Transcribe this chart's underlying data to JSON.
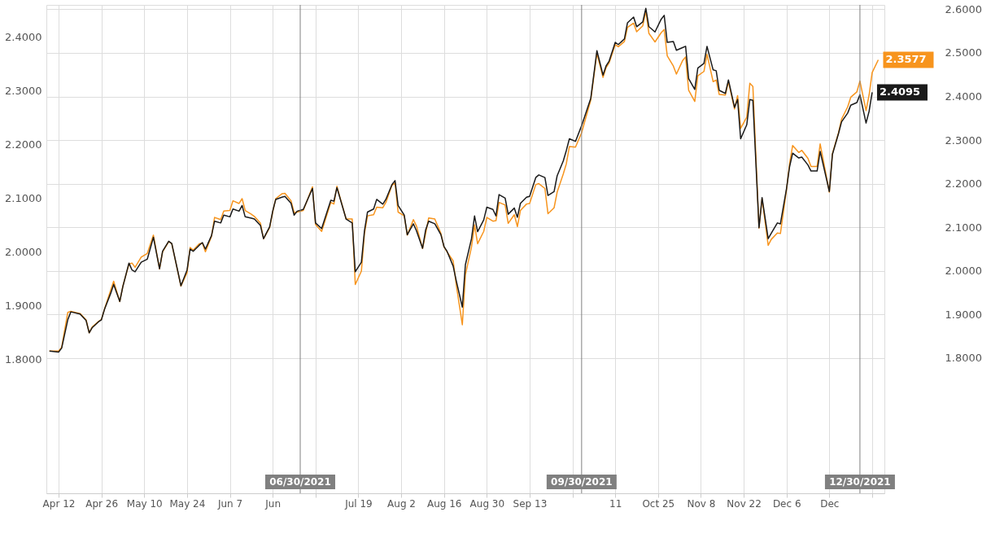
{
  "chart_data": {
    "type": "line",
    "x": [
      "2021-04-09",
      "2021-04-12",
      "2021-04-13",
      "2021-04-15",
      "2021-04-16",
      "2021-04-19",
      "2021-04-21",
      "2021-04-22",
      "2021-04-23",
      "2021-04-25",
      "2021-04-26",
      "2021-04-27",
      "2021-04-29",
      "2021-04-30",
      "2021-05-02",
      "2021-05-03",
      "2021-05-05",
      "2021-05-06",
      "2021-05-07",
      "2021-05-09",
      "2021-05-11",
      "2021-05-13",
      "2021-05-15",
      "2021-05-16",
      "2021-05-18",
      "2021-05-19",
      "2021-05-22",
      "2021-05-24",
      "2021-05-25",
      "2021-05-26",
      "2021-05-28",
      "2021-05-29",
      "2021-05-30",
      "2021-06-01",
      "2021-06-02",
      "2021-06-04",
      "2021-06-05",
      "2021-06-07",
      "2021-06-08",
      "2021-06-10",
      "2021-06-11",
      "2021-06-12",
      "2021-06-14",
      "2021-06-15",
      "2021-06-17",
      "2021-06-18",
      "2021-06-20",
      "2021-06-21",
      "2021-06-22",
      "2021-06-24",
      "2021-06-25",
      "2021-06-27",
      "2021-06-28",
      "2021-06-29",
      "2021-07-01",
      "2021-07-04",
      "2021-07-05",
      "2021-07-07",
      "2021-07-10",
      "2021-07-11",
      "2021-07-12",
      "2021-07-15",
      "2021-07-17",
      "2021-07-18",
      "2021-07-20",
      "2021-07-21",
      "2021-07-22",
      "2021-07-24",
      "2021-07-25",
      "2021-07-27",
      "2021-07-28",
      "2021-07-30",
      "2021-07-31",
      "2021-08-01",
      "2021-08-03",
      "2021-08-04",
      "2021-08-06",
      "2021-08-07",
      "2021-08-09",
      "2021-08-10",
      "2021-08-11",
      "2021-08-13",
      "2021-08-15",
      "2021-08-16",
      "2021-08-17",
      "2021-08-19",
      "2021-08-20",
      "2021-08-22",
      "2021-08-23",
      "2021-08-25",
      "2021-08-26",
      "2021-08-27",
      "2021-08-29",
      "2021-08-30",
      "2021-09-01",
      "2021-09-02",
      "2021-09-03",
      "2021-09-05",
      "2021-09-06",
      "2021-09-08",
      "2021-09-09",
      "2021-09-10",
      "2021-09-12",
      "2021-09-13",
      "2021-09-15",
      "2021-09-16",
      "2021-09-18",
      "2021-09-19",
      "2021-09-21",
      "2021-09-22",
      "2021-09-24",
      "2021-09-25",
      "2021-09-26",
      "2021-09-28",
      "2021-09-30",
      "2021-10-03",
      "2021-10-05",
      "2021-10-07",
      "2021-10-08",
      "2021-10-09",
      "2021-10-11",
      "2021-10-12",
      "2021-10-14",
      "2021-10-15",
      "2021-10-17",
      "2021-10-18",
      "2021-10-20",
      "2021-10-21",
      "2021-10-22",
      "2021-10-24",
      "2021-10-26",
      "2021-10-27",
      "2021-10-28",
      "2021-10-30",
      "2021-10-31",
      "2021-11-02",
      "2021-11-03",
      "2021-11-04",
      "2021-11-06",
      "2021-11-07",
      "2021-11-09",
      "2021-11-10",
      "2021-11-12",
      "2021-11-13",
      "2021-11-14",
      "2021-11-16",
      "2021-11-17",
      "2021-11-19",
      "2021-11-20",
      "2021-11-21",
      "2021-11-23",
      "2021-11-24",
      "2021-11-25",
      "2021-11-27",
      "2021-11-28",
      "2021-11-30",
      "2021-12-01",
      "2021-12-03",
      "2021-12-04",
      "2021-12-06",
      "2021-12-07",
      "2021-12-08",
      "2021-12-10",
      "2021-12-11",
      "2021-12-13",
      "2021-12-14",
      "2021-12-16",
      "2021-12-17",
      "2021-12-20",
      "2021-12-21",
      "2021-12-23",
      "2021-12-24",
      "2021-12-26",
      "2021-12-27",
      "2021-12-29",
      "2021-12-30",
      "2022-01-01",
      "2022-01-02",
      "2022-01-03",
      "2022-01-05"
    ],
    "series": [
      {
        "color": "#f7941d",
        "axis": "y",
        "values": [
          1.815,
          1.815,
          1.822,
          1.887,
          1.889,
          1.885,
          1.873,
          1.849,
          1.86,
          1.87,
          1.874,
          1.893,
          1.928,
          1.945,
          1.907,
          1.936,
          1.977,
          1.979,
          1.971,
          1.99,
          1.997,
          2.031,
          1.968,
          2.0,
          2.019,
          2.015,
          1.936,
          1.961,
          2.008,
          2.003,
          2.015,
          2.016,
          2.0,
          2.029,
          2.064,
          2.06,
          2.076,
          2.077,
          2.095,
          2.09,
          2.099,
          2.077,
          2.07,
          2.066,
          2.053,
          2.024,
          2.045,
          2.074,
          2.099,
          2.108,
          2.109,
          2.095,
          2.073,
          2.074,
          2.077,
          2.121,
          2.051,
          2.038,
          2.092,
          2.089,
          2.122,
          2.061,
          2.061,
          1.939,
          1.964,
          2.034,
          2.067,
          2.069,
          2.083,
          2.082,
          2.092,
          2.124,
          2.128,
          2.074,
          2.067,
          2.031,
          2.06,
          2.048,
          2.006,
          2.034,
          2.063,
          2.061,
          2.034,
          2.009,
          2.0,
          1.983,
          1.939,
          1.864,
          1.957,
          2.009,
          2.05,
          2.015,
          2.038,
          2.064,
          2.057,
          2.058,
          2.092,
          2.087,
          2.053,
          2.069,
          2.047,
          2.077,
          2.089,
          2.09,
          2.125,
          2.127,
          2.118,
          2.071,
          2.082,
          2.111,
          2.145,
          2.164,
          2.196,
          2.195,
          2.222,
          2.283,
          2.37,
          2.325,
          2.343,
          2.352,
          2.386,
          2.382,
          2.392,
          2.418,
          2.426,
          2.41,
          2.421,
          2.449,
          2.407,
          2.391,
          2.408,
          2.414,
          2.365,
          2.346,
          2.331,
          2.356,
          2.363,
          2.301,
          2.28,
          2.328,
          2.336,
          2.368,
          2.317,
          2.32,
          2.293,
          2.292,
          2.317,
          2.266,
          2.291,
          2.23,
          2.251,
          2.314,
          2.308,
          2.044,
          2.099,
          2.012,
          2.023,
          2.035,
          2.034,
          2.116,
          2.164,
          2.198,
          2.185,
          2.189,
          2.174,
          2.159,
          2.159,
          2.201,
          2.111,
          2.183,
          2.222,
          2.247,
          2.27,
          2.288,
          2.298,
          2.318,
          2.263,
          2.292,
          2.334,
          2.3577
        ],
        "value_labels": [
          null,
          null,
          null,
          null,
          null,
          null,
          null,
          null,
          null,
          null,
          null,
          null,
          null,
          null,
          null,
          null,
          null,
          null,
          null,
          null,
          null,
          null,
          null,
          null,
          null,
          null,
          null,
          null,
          null,
          null,
          null,
          null,
          null,
          null,
          null,
          null,
          null,
          null,
          null,
          null,
          null,
          null,
          null,
          null,
          null,
          null,
          null,
          null,
          null,
          null,
          null,
          null,
          null,
          null,
          null,
          null,
          null,
          null,
          null,
          null,
          null,
          null,
          null,
          null,
          null,
          null,
          null,
          null,
          null,
          null,
          null,
          null,
          null,
          null,
          null,
          null,
          null,
          null,
          null,
          null,
          null,
          null,
          null,
          null,
          null,
          null,
          null,
          null,
          null,
          null,
          null,
          null,
          null,
          null,
          null,
          null,
          null,
          null,
          null,
          null,
          null,
          null,
          null,
          null,
          null,
          null,
          null,
          null,
          null,
          null,
          null,
          null,
          null,
          null,
          null,
          null,
          null,
          null,
          null,
          null,
          null,
          null,
          null,
          null,
          null,
          null,
          null,
          null,
          null,
          null,
          null,
          null,
          null,
          null,
          null,
          null,
          null,
          null,
          null,
          null,
          null,
          null,
          null,
          null,
          null,
          null,
          null,
          null,
          null,
          null,
          null,
          null,
          null,
          null,
          null,
          null,
          null,
          null,
          null,
          null,
          null,
          null,
          null,
          null,
          null,
          null,
          null,
          null,
          null,
          null,
          null,
          null,
          null,
          null,
          null,
          null,
          null,
          null,
          null,
          "2.3577"
        ]
      },
      {
        "color": "#1a1a1a",
        "axis": "y2",
        "values": [
          1.816,
          1.814,
          1.823,
          1.888,
          1.906,
          1.901,
          1.886,
          1.858,
          1.87,
          1.883,
          1.888,
          1.912,
          1.948,
          1.969,
          1.93,
          1.964,
          2.018,
          2.002,
          1.998,
          2.02,
          2.027,
          2.077,
          2.005,
          2.045,
          2.068,
          2.063,
          1.966,
          2.002,
          2.05,
          2.045,
          2.059,
          2.065,
          2.05,
          2.081,
          2.114,
          2.11,
          2.128,
          2.124,
          2.142,
          2.137,
          2.15,
          2.124,
          2.121,
          2.119,
          2.104,
          2.074,
          2.101,
          2.137,
          2.164,
          2.169,
          2.171,
          2.155,
          2.128,
          2.137,
          2.141,
          2.189,
          2.11,
          2.097,
          2.162,
          2.16,
          2.191,
          2.119,
          2.11,
          1.998,
          2.02,
          2.092,
          2.135,
          2.142,
          2.164,
          2.153,
          2.164,
          2.198,
          2.207,
          2.15,
          2.128,
          2.083,
          2.108,
          2.092,
          2.052,
          2.094,
          2.114,
          2.108,
          2.083,
          2.056,
          2.045,
          2.011,
          1.978,
          1.917,
          2.014,
          2.074,
          2.126,
          2.09,
          2.117,
          2.146,
          2.141,
          2.126,
          2.175,
          2.167,
          2.13,
          2.144,
          2.123,
          2.155,
          2.169,
          2.171,
          2.214,
          2.22,
          2.214,
          2.173,
          2.182,
          2.218,
          2.252,
          2.276,
          2.303,
          2.297,
          2.333,
          2.396,
          2.505,
          2.449,
          2.47,
          2.481,
          2.524,
          2.519,
          2.532,
          2.569,
          2.582,
          2.56,
          2.571,
          2.602,
          2.56,
          2.548,
          2.577,
          2.586,
          2.524,
          2.526,
          2.506,
          2.512,
          2.515,
          2.441,
          2.416,
          2.465,
          2.476,
          2.515,
          2.461,
          2.459,
          2.414,
          2.407,
          2.438,
          2.375,
          2.393,
          2.303,
          2.335,
          2.393,
          2.391,
          2.099,
          2.168,
          2.074,
          2.086,
          2.11,
          2.108,
          2.189,
          2.239,
          2.27,
          2.259,
          2.261,
          2.243,
          2.229,
          2.229,
          2.274,
          2.182,
          2.267,
          2.315,
          2.342,
          2.362,
          2.38,
          2.386,
          2.404,
          2.339,
          2.366,
          2.4095,
          null
        ],
        "value_labels": [
          null,
          null,
          null,
          null,
          null,
          null,
          null,
          null,
          null,
          null,
          null,
          null,
          null,
          null,
          null,
          null,
          null,
          null,
          null,
          null,
          null,
          null,
          null,
          null,
          null,
          null,
          null,
          null,
          null,
          null,
          null,
          null,
          null,
          null,
          null,
          null,
          null,
          null,
          null,
          null,
          null,
          null,
          null,
          null,
          null,
          null,
          null,
          null,
          null,
          null,
          null,
          null,
          null,
          null,
          null,
          null,
          null,
          null,
          null,
          null,
          null,
          null,
          null,
          null,
          null,
          null,
          null,
          null,
          null,
          null,
          null,
          null,
          null,
          null,
          null,
          null,
          null,
          null,
          null,
          null,
          null,
          null,
          null,
          null,
          null,
          null,
          null,
          null,
          null,
          null,
          null,
          null,
          null,
          null,
          null,
          null,
          null,
          null,
          null,
          null,
          null,
          null,
          null,
          null,
          null,
          null,
          null,
          null,
          null,
          null,
          null,
          null,
          null,
          null,
          null,
          null,
          null,
          null,
          null,
          null,
          null,
          null,
          null,
          null,
          null,
          null,
          null,
          null,
          null,
          null,
          null,
          null,
          null,
          null,
          null,
          null,
          null,
          null,
          null,
          null,
          null,
          null,
          null,
          null,
          null,
          null,
          null,
          null,
          null,
          null,
          null,
          null,
          null,
          null,
          null,
          null,
          null,
          null,
          null,
          null,
          null,
          null,
          null,
          null,
          null,
          null,
          null,
          null,
          null,
          null,
          null,
          null,
          null,
          null,
          null,
          null,
          null,
          null,
          "2.4095",
          null
        ]
      }
    ],
    "xlim": [
      "2021-04-08",
      "2022-01-07"
    ],
    "xticks": [
      {
        "value": "2021-04-12",
        "label": "Apr 12"
      },
      {
        "value": "2021-04-26",
        "label": "Apr 26"
      },
      {
        "value": "2021-05-10",
        "label": "May 10"
      },
      {
        "value": "2021-05-24",
        "label": "May 24"
      },
      {
        "value": "2021-06-07",
        "label": "Jun 7"
      },
      {
        "value": "2021-06-21",
        "label": "Jun"
      },
      {
        "value": "2021-07-05",
        "label": null
      },
      {
        "value": "2021-07-19",
        "label": "Jul 19"
      },
      {
        "value": "2021-08-02",
        "label": "Aug 2"
      },
      {
        "value": "2021-08-16",
        "label": "Aug 16"
      },
      {
        "value": "2021-08-30",
        "label": "Aug 30"
      },
      {
        "value": "2021-09-13",
        "label": "Sep 13"
      },
      {
        "value": "2021-09-27",
        "label": null
      },
      {
        "value": "2021-10-11",
        "label": "11"
      },
      {
        "value": "2021-10-25",
        "label": "Oct 25"
      },
      {
        "value": "2021-11-08",
        "label": "Nov 8"
      },
      {
        "value": "2021-11-22",
        "label": "Nov 22"
      },
      {
        "value": "2021-12-06",
        "label": "Dec 6"
      },
      {
        "value": "2021-12-20",
        "label": "Dec"
      },
      {
        "value": "2022-01-03",
        "label": null
      }
    ],
    "ylim": [
      1.55,
      2.46
    ],
    "yticks": [
      {
        "value": 1.8,
        "label": "1.8000"
      },
      {
        "value": 1.9,
        "label": "1.9000"
      },
      {
        "value": 2.0,
        "label": "2.0000"
      },
      {
        "value": 2.1,
        "label": "2.1000"
      },
      {
        "value": 2.2,
        "label": "2.2000"
      },
      {
        "value": 2.3,
        "label": "2.3000"
      },
      {
        "value": 2.4,
        "label": "2.4000"
      }
    ],
    "y2lim": [
      1.49,
      2.61
    ],
    "y2ticks": [
      {
        "value": 1.8,
        "label": "1.8000"
      },
      {
        "value": 1.9,
        "label": "1.9000"
      },
      {
        "value": 2.0,
        "label": "2.0000"
      },
      {
        "value": 2.1,
        "label": "2.1000"
      },
      {
        "value": 2.2,
        "label": "2.2000"
      },
      {
        "value": 2.3,
        "label": "2.3000"
      },
      {
        "value": 2.4,
        "label": "2.4000"
      },
      {
        "value": 2.5,
        "label": "2.5000"
      },
      {
        "value": 2.6,
        "label": "2.6000"
      }
    ],
    "ref_lines": [
      {
        "axis": "x",
        "value": "2021-06-30",
        "label": "06/30/2021",
        "color": "#808080"
      },
      {
        "axis": "x",
        "value": "2021-09-30",
        "label": "09/30/2021",
        "color": "#808080"
      },
      {
        "axis": "x",
        "value": "2021-12-30",
        "label": "12/30/2021",
        "color": "#808080"
      }
    ],
    "grid": true,
    "line_style": "solid"
  }
}
